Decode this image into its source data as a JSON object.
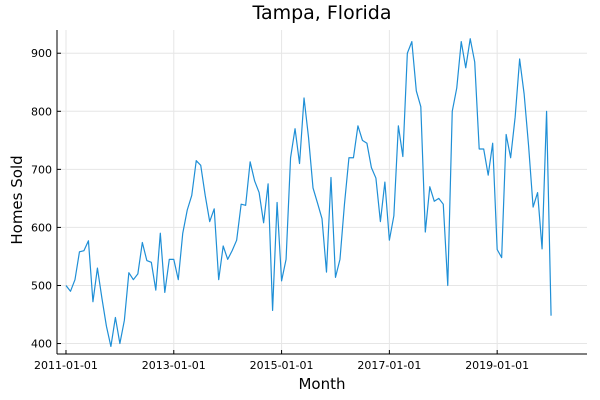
{
  "chart_data": {
    "type": "line",
    "title": "Tampa, Florida",
    "xlabel": "Month",
    "ylabel": "Homes Sold",
    "grid": true,
    "legend": "none",
    "start_month": "2011-01",
    "x_tick_labels": [
      "2011-01-01",
      "2013-01-01",
      "2015-01-01",
      "2017-01-01",
      "2019-01-01"
    ],
    "y_ticks": [
      400,
      500,
      600,
      700,
      800,
      900
    ],
    "xlim": [
      "2010-11",
      "2020-09"
    ],
    "ylim": [
      382,
      940
    ],
    "series": [
      {
        "name": "",
        "color": "#1f8fd6",
        "values": [
          500,
          490,
          510,
          558,
          560,
          577,
          472,
          530,
          478,
          430,
          395,
          445,
          400,
          440,
          522,
          510,
          520,
          574,
          543,
          540,
          492,
          590,
          488,
          545,
          545,
          510,
          590,
          630,
          655,
          715,
          707,
          655,
          610,
          632,
          510,
          568,
          545,
          560,
          578,
          640,
          638,
          713,
          680,
          660,
          608,
          675,
          457,
          643,
          508,
          545,
          720,
          770,
          710,
          823,
          755,
          668,
          642,
          615,
          523,
          686,
          514,
          545,
          640,
          720,
          720,
          775,
          750,
          745,
          703,
          685,
          610,
          678,
          578,
          620,
          775,
          722,
          900,
          920,
          835,
          808,
          592,
          670,
          645,
          650,
          640,
          500,
          800,
          840,
          920,
          875,
          925,
          885,
          735,
          735,
          690,
          745,
          562,
          548,
          760,
          720,
          790,
          890,
          830,
          740,
          635,
          660,
          563,
          800,
          448
        ]
      }
    ]
  }
}
